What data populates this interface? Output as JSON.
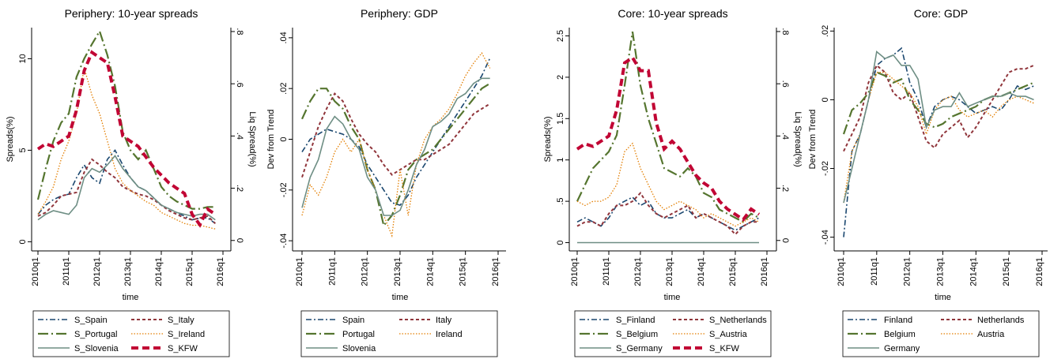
{
  "chart_data": [
    {
      "type": "line",
      "title": "Periphery: 10-year spreads",
      "xlabel": "time",
      "ylabel": "Spreads(%)",
      "y2label": "Liq Spread(%)",
      "categories": [
        "2010q1",
        null,
        null,
        null,
        "2011q1",
        null,
        null,
        null,
        "2012q1",
        null,
        null,
        null,
        "2013q1",
        null,
        null,
        null,
        "2014q1",
        null,
        null,
        null,
        "2015q1",
        null,
        null,
        null,
        "2016q1"
      ],
      "ylim": [
        -0.5,
        11.7
      ],
      "yticks": [
        0,
        5,
        10
      ],
      "y2lim": [
        -0.04,
        0.815
      ],
      "y2ticks": [
        0,
        {
          "value": 0.2,
          "label": ".2"
        },
        {
          "value": 0.4,
          "label": ".4"
        },
        {
          "value": 0.6,
          "label": ".6"
        },
        {
          "value": 0.8,
          "label": ".8"
        }
      ],
      "series": [
        {
          "name": "S_Spain",
          "color": "#1a476f",
          "dash": "dashdot",
          "values": [
            1.5,
            2,
            2.3,
            2.5,
            2.6,
            3.5,
            4.2,
            3.5,
            3.2,
            4.5,
            5,
            4.2,
            3.5,
            3.0,
            2.8,
            2.4,
            2.0,
            1.8,
            1.6,
            1.4,
            1.2,
            1.3,
            1.3,
            1.0,
            null
          ]
        },
        {
          "name": "S_Italy",
          "color": "#90353b",
          "dash": "shortdash",
          "values": [
            1.4,
            1.6,
            2,
            2.5,
            2.6,
            2.7,
            3.8,
            4.5,
            4.2,
            3.8,
            3.5,
            3.0,
            2.8,
            2.6,
            2.5,
            2.3,
            2.0,
            1.7,
            1.5,
            1.3,
            1.2,
            1.3,
            1.4,
            1.0,
            null
          ]
        },
        {
          "name": "S_Portugal",
          "color": "#55752f",
          "dash": "longdashdot",
          "values": [
            2.3,
            4,
            5.5,
            6.5,
            7,
            9,
            10,
            10.8,
            11.5,
            10.2,
            8.5,
            6,
            5,
            4.5,
            5,
            4,
            3,
            2.5,
            2.2,
            2.0,
            1.8,
            1.8,
            1.9,
            1.9,
            null
          ]
        },
        {
          "name": "S_Ireland",
          "color": "#e37e00",
          "dash": "dot",
          "values": [
            1.5,
            2.2,
            3,
            4.5,
            5.5,
            7,
            9.5,
            8,
            7,
            5.5,
            4,
            3.2,
            2.8,
            2.5,
            2.2,
            2.0,
            1.6,
            1.4,
            1.2,
            1.0,
            0.9,
            0.9,
            0.8,
            0.7,
            null
          ]
        },
        {
          "name": "S_Slovenia",
          "color": "#6e8e84",
          "dash": "solid",
          "values": [
            1.2,
            1.5,
            1.7,
            1.6,
            1.5,
            2.0,
            3.5,
            4.0,
            3.8,
            4.2,
            4.7,
            4.0,
            3.5,
            3.0,
            2.8,
            2.4,
            2.0,
            1.8,
            1.6,
            1.5,
            1.4,
            1.5,
            1.5,
            1.2,
            null
          ]
        },
        {
          "name": "S_KFW",
          "color": "#c10534",
          "dash": "thickdash",
          "axis": "y2",
          "values": [
            0.35,
            0.37,
            0.36,
            0.38,
            0.4,
            0.5,
            0.65,
            0.72,
            0.7,
            0.68,
            0.55,
            0.4,
            0.38,
            0.36,
            0.32,
            0.28,
            0.25,
            0.22,
            0.2,
            0.18,
            0.1,
            0.06,
            0.12,
            0.1,
            null
          ]
        }
      ]
    },
    {
      "type": "line",
      "title": "Periphery: GDP",
      "xlabel": "time",
      "ylabel": "Dev from Trend",
      "categories": [
        "2010q1",
        null,
        null,
        null,
        "2011q1",
        null,
        null,
        null,
        "2012q1",
        null,
        null,
        null,
        "2013q1",
        null,
        null,
        null,
        "2014q1",
        null,
        null,
        null,
        "2015q1",
        null,
        null,
        null,
        "2016q1"
      ],
      "ylim": [
        -0.044,
        0.044
      ],
      "yticks": [
        {
          "value": -0.04,
          "label": "-.04"
        },
        {
          "value": -0.02,
          "label": "-.02"
        },
        0,
        {
          "value": 0.02,
          "label": ".02"
        },
        {
          "value": 0.04,
          "label": ".04"
        }
      ],
      "series": [
        {
          "name": "Spain",
          "color": "#1a476f",
          "dash": "dashdot",
          "values": [
            -0.005,
            0.0,
            0.002,
            0.004,
            0.003,
            0.002,
            0.0,
            -0.003,
            -0.01,
            -0.015,
            -0.02,
            -0.025,
            -0.026,
            -0.022,
            -0.015,
            -0.01,
            -0.005,
            0.0,
            0.005,
            0.01,
            0.015,
            0.02,
            0.025,
            0.032,
            null
          ]
        },
        {
          "name": "Italy",
          "color": "#90353b",
          "dash": "shortdash",
          "values": [
            -0.015,
            -0.005,
            0.005,
            0.012,
            0.018,
            0.015,
            0.008,
            0.002,
            -0.002,
            -0.005,
            -0.01,
            -0.014,
            -0.012,
            -0.01,
            -0.008,
            -0.008,
            -0.006,
            -0.004,
            -0.002,
            0.002,
            0.006,
            0.01,
            0.012,
            0.014,
            null
          ]
        },
        {
          "name": "Portugal",
          "color": "#55752f",
          "dash": "longdashdot",
          "values": [
            0.008,
            0.015,
            0.02,
            0.02,
            0.015,
            0.012,
            0.005,
            0.0,
            -0.012,
            -0.02,
            -0.034,
            -0.03,
            -0.022,
            -0.012,
            -0.008,
            -0.006,
            -0.004,
            0.0,
            0.004,
            0.008,
            0.012,
            0.016,
            0.02,
            0.022,
            null
          ]
        },
        {
          "name": "Ireland",
          "color": "#e37e00",
          "dash": "dot",
          "values": [
            -0.03,
            -0.018,
            -0.022,
            -0.015,
            -0.005,
            0.0,
            -0.005,
            0.0,
            -0.012,
            -0.02,
            -0.03,
            -0.038,
            -0.012,
            -0.03,
            -0.01,
            0.0,
            0.005,
            0.008,
            0.012,
            0.018,
            0.025,
            0.03,
            0.034,
            0.028,
            null
          ]
        },
        {
          "name": "Slovenia",
          "color": "#6e8e84",
          "dash": "solid",
          "values": [
            -0.027,
            -0.015,
            -0.008,
            0.004,
            0.009,
            0.006,
            0.0,
            -0.004,
            -0.015,
            -0.02,
            -0.03,
            -0.03,
            -0.028,
            -0.02,
            -0.01,
            -0.004,
            0.005,
            0.007,
            0.01,
            0.016,
            0.018,
            0.022,
            0.024,
            0.024,
            null
          ]
        }
      ]
    },
    {
      "type": "line",
      "title": "Core: 10-year spreads",
      "xlabel": "time",
      "ylabel": "Spreads(%)",
      "y2label": "Liq Spread(%)",
      "categories": [
        "2010q1",
        null,
        null,
        null,
        "2011q1",
        null,
        null,
        null,
        "2012q1",
        null,
        null,
        null,
        "2013q1",
        null,
        null,
        null,
        "2014q1",
        null,
        null,
        null,
        "2015q1",
        null,
        null,
        null,
        "2016q1"
      ],
      "ylim": [
        -0.1,
        2.6
      ],
      "yticks": [
        0,
        {
          "value": 0.5,
          "label": ".5"
        },
        1,
        1.5,
        2,
        2.5
      ],
      "y2lim": [
        -0.04,
        0.815
      ],
      "y2ticks": [
        0,
        {
          "value": 0.2,
          "label": ".2"
        },
        {
          "value": 0.4,
          "label": ".4"
        },
        {
          "value": 0.6,
          "label": ".6"
        },
        {
          "value": 0.8,
          "label": ".8"
        }
      ],
      "series": [
        {
          "name": "S_Finland",
          "color": "#1a476f",
          "dash": "dashdot",
          "values": [
            0.25,
            0.3,
            0.25,
            0.2,
            0.3,
            0.45,
            0.5,
            0.55,
            0.45,
            0.5,
            0.35,
            0.3,
            0.3,
            0.35,
            0.4,
            0.3,
            0.35,
            0.3,
            0.25,
            0.2,
            0.15,
            0.2,
            0.25,
            0.3,
            null
          ]
        },
        {
          "name": "S_Netherlands",
          "color": "#90353b",
          "dash": "shortdash",
          "values": [
            0.2,
            0.25,
            0.25,
            0.2,
            0.35,
            0.45,
            0.45,
            0.5,
            0.6,
            0.45,
            0.35,
            0.3,
            0.35,
            0.4,
            0.45,
            0.3,
            0.35,
            0.3,
            0.25,
            0.2,
            0.1,
            0.2,
            0.25,
            0.25,
            null
          ]
        },
        {
          "name": "S_Belgium",
          "color": "#55752f",
          "dash": "longdashdot",
          "values": [
            0.5,
            0.7,
            0.9,
            1.0,
            1.1,
            1.3,
            1.9,
            2.55,
            1.9,
            1.5,
            1.2,
            0.9,
            0.85,
            0.8,
            0.9,
            0.8,
            0.6,
            0.55,
            0.4,
            0.35,
            0.3,
            0.25,
            0.35,
            0.3,
            null
          ]
        },
        {
          "name": "S_Austria",
          "color": "#e37e00",
          "dash": "dot",
          "values": [
            0.5,
            0.45,
            0.5,
            0.5,
            0.55,
            0.7,
            1.1,
            1.2,
            0.9,
            0.7,
            0.5,
            0.4,
            0.45,
            0.5,
            0.45,
            0.4,
            0.3,
            0.35,
            0.3,
            0.25,
            0.2,
            0.25,
            0.3,
            0.25,
            null
          ]
        },
        {
          "name": "S_Germany",
          "color": "#6e8e84",
          "dash": "solid",
          "values": [
            0,
            0,
            0,
            0,
            0,
            0,
            0,
            0,
            0,
            0,
            0,
            0,
            0,
            0,
            0,
            0,
            0,
            0,
            0,
            0,
            0,
            0,
            0,
            0,
            null
          ]
        },
        {
          "name": "S_KFW",
          "color": "#c10534",
          "dash": "thickdash",
          "axis": "y2",
          "values": [
            0.35,
            0.37,
            0.36,
            0.38,
            0.4,
            0.5,
            0.68,
            0.7,
            0.65,
            0.65,
            0.45,
            0.35,
            0.38,
            0.35,
            0.3,
            0.25,
            0.22,
            0.2,
            0.15,
            0.12,
            0.1,
            0.08,
            0.12,
            0.1,
            null
          ]
        }
      ]
    },
    {
      "type": "line",
      "title": "Core: GDP",
      "xlabel": "time",
      "ylabel": "Dev from Trend",
      "categories": [
        "2010q1",
        null,
        null,
        null,
        "2011q1",
        null,
        null,
        null,
        "2012q1",
        null,
        null,
        null,
        "2013q1",
        null,
        null,
        null,
        "2014q1",
        null,
        null,
        null,
        "2015q1",
        null,
        null,
        null,
        "2016q1"
      ],
      "ylim": [
        -0.044,
        0.021
      ],
      "yticks": [
        {
          "value": -0.04,
          "label": "-.04"
        },
        {
          "value": -0.02,
          "label": "-.02"
        },
        0,
        {
          "value": 0.02,
          "label": ".02"
        }
      ],
      "series": [
        {
          "name": "Finland",
          "color": "#1a476f",
          "dash": "dashdot",
          "values": [
            -0.04,
            -0.015,
            -0.01,
            0.0,
            0.01,
            0.012,
            0.013,
            0.015,
            0.005,
            0.0,
            -0.008,
            -0.002,
            0.0,
            0.001,
            0.0,
            -0.002,
            -0.004,
            -0.003,
            -0.002,
            -0.003,
            0.0,
            0.004,
            0.003,
            0.004,
            null
          ]
        },
        {
          "name": "Netherlands",
          "color": "#90353b",
          "dash": "shortdash",
          "values": [
            -0.015,
            -0.01,
            -0.005,
            0.005,
            0.01,
            0.008,
            0.002,
            0.0,
            0.002,
            -0.005,
            -0.012,
            -0.014,
            -0.01,
            -0.008,
            -0.006,
            -0.011,
            -0.008,
            -0.004,
            0.0,
            0.004,
            0.008,
            0.009,
            0.009,
            0.01,
            null
          ]
        },
        {
          "name": "Belgium",
          "color": "#55752f",
          "dash": "longdashdot",
          "values": [
            -0.01,
            -0.003,
            -0.001,
            0.002,
            0.008,
            0.007,
            0.005,
            0.006,
            0.0,
            -0.003,
            -0.007,
            -0.008,
            -0.007,
            -0.005,
            -0.004,
            -0.003,
            -0.002,
            0.0,
            0.001,
            0.001,
            0.002,
            0.003,
            0.004,
            0.005,
            null
          ]
        },
        {
          "name": "Austria",
          "color": "#e37e00",
          "dash": "dot",
          "values": [
            -0.03,
            -0.015,
            -0.01,
            0.0,
            0.008,
            0.008,
            0.006,
            0.004,
            0.002,
            -0.002,
            -0.01,
            -0.003,
            0.0,
            0.001,
            -0.003,
            -0.005,
            -0.004,
            -0.003,
            -0.005,
            -0.002,
            0.0,
            0.001,
            0.0,
            -0.001,
            null
          ]
        },
        {
          "name": "Germany",
          "color": "#6e8e84",
          "dash": "solid",
          "values": [
            -0.03,
            -0.02,
            -0.01,
            0.0,
            0.014,
            0.012,
            0.013,
            0.01,
            0.01,
            0.006,
            -0.008,
            -0.003,
            -0.002,
            -0.002,
            0.002,
            -0.002,
            -0.001,
            0.0,
            0.001,
            0.001,
            0.002,
            0.001,
            0.001,
            0.0,
            null
          ]
        }
      ]
    }
  ]
}
